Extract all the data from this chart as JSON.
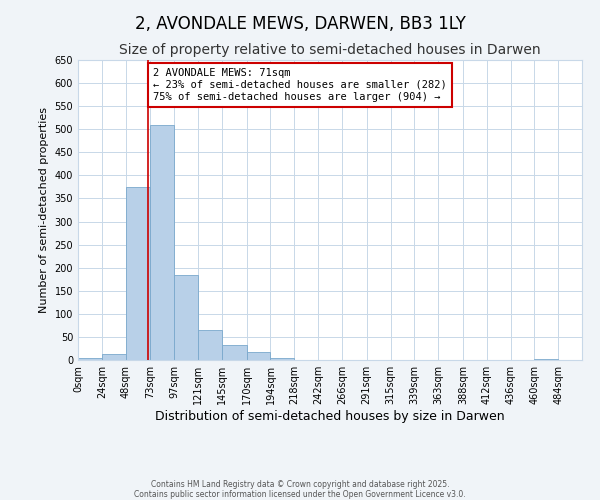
{
  "title": "2, AVONDALE MEWS, DARWEN, BB3 1LY",
  "subtitle": "Size of property relative to semi-detached houses in Darwen",
  "xlabel": "Distribution of semi-detached houses by size in Darwen",
  "ylabel": "Number of semi-detached properties",
  "bar_left_edges": [
    0,
    24,
    48,
    73,
    97,
    121,
    145,
    170,
    194,
    218,
    242,
    266,
    291,
    315,
    339,
    363,
    388,
    412,
    436,
    460
  ],
  "bar_widths": [
    24,
    24,
    25,
    24,
    24,
    24,
    25,
    24,
    24,
    24,
    24,
    25,
    24,
    24,
    24,
    25,
    24,
    24,
    24,
    24
  ],
  "bar_heights": [
    5,
    12,
    375,
    510,
    185,
    65,
    32,
    17,
    5,
    0,
    0,
    0,
    0,
    0,
    0,
    0,
    0,
    0,
    0,
    2
  ],
  "bar_color": "#b8d0e8",
  "bar_edge_color": "#7aa8cc",
  "vline_x": 71,
  "vline_color": "#cc0000",
  "annotation_text": "2 AVONDALE MEWS: 71sqm\n← 23% of semi-detached houses are smaller (282)\n75% of semi-detached houses are larger (904) →",
  "annotation_box_color": "#ffffff",
  "annotation_box_edge": "#cc0000",
  "ylim": [
    0,
    650
  ],
  "yticks": [
    0,
    50,
    100,
    150,
    200,
    250,
    300,
    350,
    400,
    450,
    500,
    550,
    600,
    650
  ],
  "xtick_labels": [
    "0sqm",
    "24sqm",
    "48sqm",
    "73sqm",
    "97sqm",
    "121sqm",
    "145sqm",
    "170sqm",
    "194sqm",
    "218sqm",
    "242sqm",
    "266sqm",
    "291sqm",
    "315sqm",
    "339sqm",
    "363sqm",
    "388sqm",
    "412sqm",
    "436sqm",
    "460sqm",
    "484sqm"
  ],
  "xtick_positions": [
    0,
    24,
    48,
    73,
    97,
    121,
    145,
    170,
    194,
    218,
    242,
    266,
    291,
    315,
    339,
    363,
    388,
    412,
    436,
    460,
    484
  ],
  "xlim": [
    0,
    508
  ],
  "grid_color": "#c8d8e8",
  "bg_color": "#f0f4f8",
  "plot_bg_color": "#ffffff",
  "footer_line1": "Contains HM Land Registry data © Crown copyright and database right 2025.",
  "footer_line2": "Contains public sector information licensed under the Open Government Licence v3.0.",
  "title_fontsize": 12,
  "subtitle_fontsize": 10,
  "xlabel_fontsize": 9,
  "ylabel_fontsize": 8,
  "annotation_fontsize": 7.5,
  "tick_fontsize": 7
}
